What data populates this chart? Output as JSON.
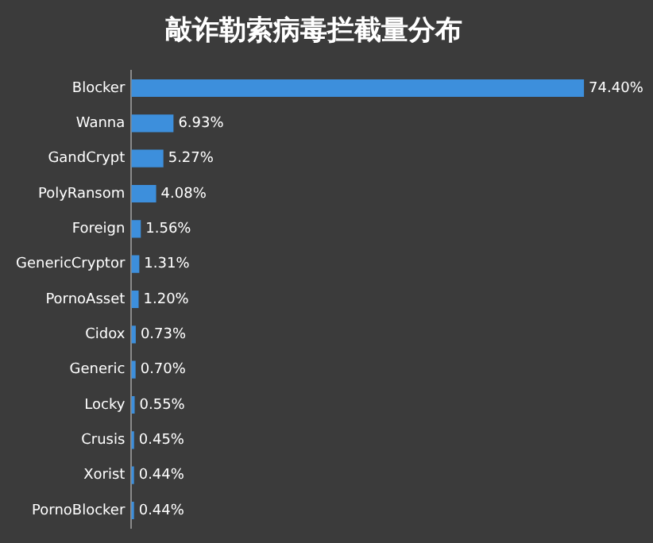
{
  "chart_data": {
    "type": "bar",
    "orientation": "horizontal",
    "title": "敲诈勒索病毒拦截量分布",
    "categories": [
      "Blocker",
      "Wanna",
      "GandCrypt",
      "PolyRansom",
      "Foreign",
      "GenericCryptor",
      "PornoAsset",
      "Cidox",
      "Generic",
      "Locky",
      "Crusis",
      "Xorist",
      "PornoBlocker"
    ],
    "values": [
      74.4,
      6.93,
      5.27,
      4.08,
      1.56,
      1.31,
      1.2,
      0.73,
      0.7,
      0.55,
      0.45,
      0.44,
      0.44
    ],
    "value_labels": [
      "74.40%",
      "6.93%",
      "5.27%",
      "4.08%",
      "1.56%",
      "1.31%",
      "1.20%",
      "0.73%",
      "0.70%",
      "0.55%",
      "0.45%",
      "0.44%",
      "0.44%"
    ],
    "color": "#3d8fdc"
  }
}
